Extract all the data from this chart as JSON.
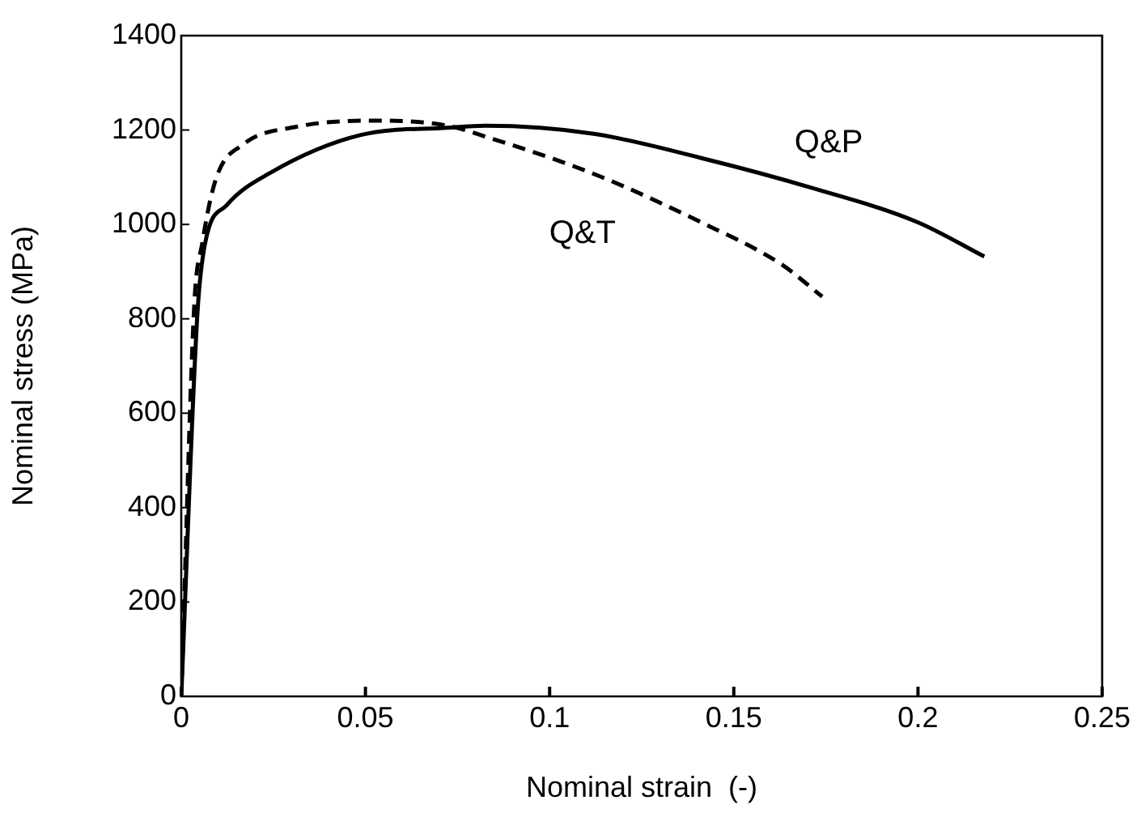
{
  "chart_data": {
    "type": "line",
    "xlabel": "Nominal strain  (-)",
    "ylabel": "Nominal stress (MPa)",
    "xlim": [
      0,
      0.25
    ],
    "xticks": [
      0,
      0.05,
      0.1,
      0.15,
      0.2,
      0.25
    ],
    "ylim": [
      0,
      1400
    ],
    "yticks": [
      0,
      200,
      400,
      600,
      800,
      1000,
      1200,
      1400
    ],
    "grid": false,
    "legend": false,
    "marker": "none",
    "series": [
      {
        "name": "Q&P",
        "color": "#000000",
        "line_style": "solid",
        "x": [
          0,
          0.0044,
          0.0065,
          0.0124,
          0.0241,
          0.049,
          0.0724,
          0.0826,
          0.112,
          0.141,
          0.1705,
          0.1998,
          0.218
        ],
        "values": [
          0,
          813,
          961,
          1041,
          1109,
          1190,
          1205,
          1209,
          1192,
          1141,
          1079,
          1005,
          932
        ]
      },
      {
        "name": "Q&T",
        "color": "#000000",
        "line_style": "dashed",
        "x": [
          0,
          0.0035,
          0.0057,
          0.0094,
          0.0167,
          0.0313,
          0.053,
          0.0724,
          0.0826,
          0.112,
          0.141,
          0.163,
          0.174
        ],
        "values": [
          0,
          825,
          960,
          1096,
          1169,
          1207,
          1220,
          1209,
          1186,
          1107,
          1005,
          915,
          847
        ]
      }
    ]
  }
}
